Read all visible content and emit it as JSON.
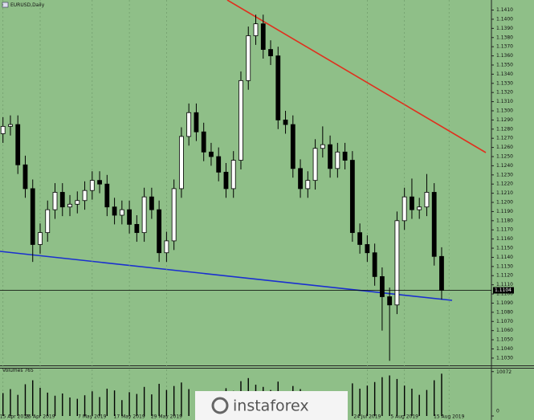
{
  "chart_data": {
    "type": "candlestick",
    "title": "EURUSD,Daily",
    "watermark": "instaforex",
    "color_up": "#ffffff",
    "color_down": "#000000",
    "background": "#8fbf88",
    "open": [
      1.1275,
      1.1283,
      1.1285,
      1.1241,
      1.1215,
      1.1154,
      1.1167,
      1.1192,
      1.1211,
      1.1195,
      1.1198,
      1.1202,
      1.1213,
      1.1224,
      1.122,
      1.1195,
      1.1186,
      1.1192,
      1.1176,
      1.1167,
      1.1206,
      1.1192,
      1.1145,
      1.1158,
      1.1215,
      1.1272,
      1.1298,
      1.1277,
      1.1255,
      1.125,
      1.1233,
      1.1215,
      1.1246,
      1.1333,
      1.1382,
      1.1395,
      1.1367,
      1.136,
      1.129,
      1.1285,
      1.1237,
      1.1215,
      1.1224,
      1.1259,
      1.1263,
      1.1237,
      1.1255,
      1.1246,
      1.1167,
      1.1154,
      1.1145,
      1.1119,
      1.1097,
      1.1088,
      1.118,
      1.1206,
      1.1192,
      1.1195,
      1.1211,
      1.1141
    ],
    "high": [
      1.1293,
      1.1295,
      1.1295,
      1.1251,
      1.1225,
      1.1177,
      1.1202,
      1.1221,
      1.1221,
      1.1208,
      1.1212,
      1.1223,
      1.1234,
      1.1234,
      1.123,
      1.1205,
      1.1202,
      1.1202,
      1.1186,
      1.1216,
      1.1216,
      1.1202,
      1.1168,
      1.1225,
      1.1282,
      1.1308,
      1.1308,
      1.1287,
      1.1265,
      1.126,
      1.1243,
      1.1256,
      1.1343,
      1.1392,
      1.1405,
      1.1405,
      1.1377,
      1.137,
      1.13,
      1.1295,
      1.1247,
      1.1234,
      1.1269,
      1.1283,
      1.1273,
      1.1265,
      1.1265,
      1.1256,
      1.1177,
      1.1164,
      1.1155,
      1.1129,
      1.1107,
      1.119,
      1.1216,
      1.1226,
      1.1205,
      1.1231,
      1.1221,
      1.1151
    ],
    "low": [
      1.1265,
      1.1273,
      1.1231,
      1.1205,
      1.1135,
      1.1144,
      1.1157,
      1.1182,
      1.1185,
      1.1185,
      1.1188,
      1.1192,
      1.1203,
      1.121,
      1.1185,
      1.1176,
      1.1176,
      1.1166,
      1.1157,
      1.1157,
      1.1182,
      1.1135,
      1.1135,
      1.1148,
      1.1205,
      1.1262,
      1.1267,
      1.1245,
      1.124,
      1.1223,
      1.1205,
      1.1205,
      1.1236,
      1.1323,
      1.1372,
      1.1357,
      1.135,
      1.128,
      1.1275,
      1.1227,
      1.1205,
      1.1205,
      1.1214,
      1.1249,
      1.1227,
      1.1227,
      1.1236,
      1.1157,
      1.1144,
      1.1135,
      1.1109,
      1.106,
      1.1027,
      1.1078,
      1.117,
      1.1182,
      1.1182,
      1.1185,
      1.1131,
      1.1094
    ],
    "close": [
      1.1283,
      1.1285,
      1.1241,
      1.1215,
      1.1154,
      1.1167,
      1.1192,
      1.1211,
      1.1195,
      1.1198,
      1.1202,
      1.1213,
      1.1224,
      1.122,
      1.1195,
      1.1186,
      1.1192,
      1.1176,
      1.1167,
      1.1206,
      1.1192,
      1.1145,
      1.1158,
      1.1215,
      1.1272,
      1.1298,
      1.1277,
      1.1255,
      1.125,
      1.1233,
      1.1215,
      1.1246,
      1.1333,
      1.1382,
      1.1395,
      1.1367,
      1.136,
      1.129,
      1.1285,
      1.1237,
      1.1215,
      1.1224,
      1.1259,
      1.1263,
      1.1237,
      1.1255,
      1.1246,
      1.1167,
      1.1154,
      1.1145,
      1.1119,
      1.1097,
      1.1088,
      1.118,
      1.1206,
      1.1192,
      1.1195,
      1.1211,
      1.1141,
      1.1104
    ],
    "ylim": [
      1.1022,
      1.1421
    ],
    "yticks": [
      {
        "value": 1.141,
        "label": "1.1410"
      },
      {
        "value": 1.14,
        "label": "1.1400"
      },
      {
        "value": 1.139,
        "label": "1.1390"
      },
      {
        "value": 1.138,
        "label": "1.1380"
      },
      {
        "value": 1.137,
        "label": "1.1370"
      },
      {
        "value": 1.136,
        "label": "1.1360"
      },
      {
        "value": 1.135,
        "label": "1.1350"
      },
      {
        "value": 1.134,
        "label": "1.1340"
      },
      {
        "value": 1.133,
        "label": "1.1330"
      },
      {
        "value": 1.132,
        "label": "1.1320"
      },
      {
        "value": 1.131,
        "label": "1.1310"
      },
      {
        "value": 1.13,
        "label": "1.1300"
      },
      {
        "value": 1.129,
        "label": "1.1290"
      },
      {
        "value": 1.128,
        "label": "1.1280"
      },
      {
        "value": 1.127,
        "label": "1.1270"
      },
      {
        "value": 1.126,
        "label": "1.1260"
      },
      {
        "value": 1.125,
        "label": "1.1250"
      },
      {
        "value": 1.124,
        "label": "1.1240"
      },
      {
        "value": 1.123,
        "label": "1.1230"
      },
      {
        "value": 1.122,
        "label": "1.1220"
      },
      {
        "value": 1.121,
        "label": "1.1210"
      },
      {
        "value": 1.12,
        "label": "1.1200"
      },
      {
        "value": 1.119,
        "label": "1.1190"
      },
      {
        "value": 1.118,
        "label": "1.1180"
      },
      {
        "value": 1.117,
        "label": "1.1170"
      },
      {
        "value": 1.116,
        "label": "1.1160"
      },
      {
        "value": 1.115,
        "label": "1.1150"
      },
      {
        "value": 1.114,
        "label": "1.1140"
      },
      {
        "value": 1.113,
        "label": "1.1130"
      },
      {
        "value": 1.112,
        "label": "1.1120"
      },
      {
        "value": 1.111,
        "label": "1.1110"
      },
      {
        "value": 1.11,
        "label": "1.1100"
      },
      {
        "value": 1.109,
        "label": "1.1090"
      },
      {
        "value": 1.108,
        "label": "1.1080"
      },
      {
        "value": 1.107,
        "label": "1.1070"
      },
      {
        "value": 1.106,
        "label": "1.1060"
      },
      {
        "value": 1.105,
        "label": "1.1050"
      },
      {
        "value": 1.104,
        "label": "1.1040"
      },
      {
        "value": 1.103,
        "label": "1.1030"
      }
    ],
    "current_price": {
      "value": 1.1104,
      "label": "1.1104"
    },
    "xlim": [
      -0.4,
      65.7
    ],
    "xticks": [
      {
        "value": 0,
        "label": "15 Apr 2019"
      },
      {
        "value": 5,
        "label": "25 Apr 2019"
      },
      {
        "value": 12,
        "label": "7 May 2019"
      },
      {
        "value": 17,
        "label": "17 May 2019"
      },
      {
        "value": 22,
        "label": "29 May 2019"
      },
      {
        "value": 49,
        "label": "24 Jul 2019"
      },
      {
        "value": 54,
        "label": "5 Aug 2019"
      },
      {
        "value": 60,
        "label": "15 Aug 2019"
      }
    ],
    "volume_title": "Volumes 765",
    "volume": [
      5200,
      6100,
      4800,
      7200,
      8100,
      6400,
      5300,
      4600,
      5100,
      4200,
      3900,
      4700,
      5600,
      4300,
      6200,
      5800,
      3600,
      5400,
      5000,
      6600,
      4900,
      7300,
      5900,
      6800,
      7600,
      6100,
      5200,
      4800,
      5500,
      3900,
      6300,
      5700,
      7900,
      8600,
      7100,
      6600,
      5900,
      7800,
      5200,
      6800,
      6100,
      4500,
      5600,
      4900,
      5300,
      4700,
      5100,
      7400,
      6200,
      6900,
      7700,
      8800,
      9200,
      8400,
      6900,
      6200,
      4800,
      5900,
      8100,
      9600
    ],
    "volume_ylim": [
      0,
      10750
    ],
    "volume_yticks": [
      10072,
      0
    ]
  }
}
